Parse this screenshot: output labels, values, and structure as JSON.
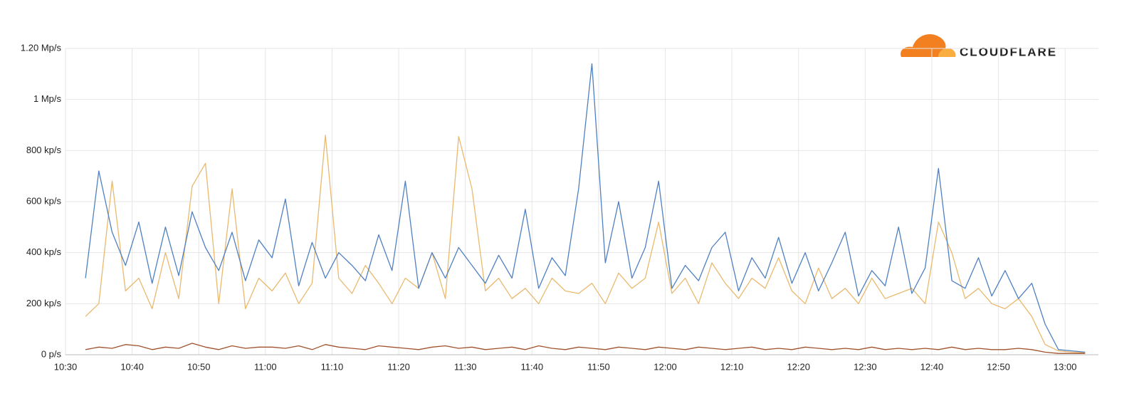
{
  "chart_data": {
    "type": "line",
    "logo": "CLOUDFLARE",
    "xlim": [
      "10:30",
      "13:05"
    ],
    "xticks": [
      "10:30",
      "10:40",
      "10:50",
      "11:00",
      "11:10",
      "11:20",
      "11:30",
      "11:40",
      "11:50",
      "12:00",
      "12:10",
      "12:20",
      "12:30",
      "12:40",
      "12:50",
      "13:00"
    ],
    "ylim": [
      0,
      1200000
    ],
    "yticks": [
      {
        "value": 0,
        "label": "0 p/s"
      },
      {
        "value": 200000,
        "label": "200 kp/s"
      },
      {
        "value": 400000,
        "label": "400 kp/s"
      },
      {
        "value": 600000,
        "label": "600 kp/s"
      },
      {
        "value": 800000,
        "label": "800 kp/s"
      },
      {
        "value": 1000000,
        "label": "1 Mp/s"
      },
      {
        "value": 1200000,
        "label": "1.20 Mp/s"
      }
    ],
    "grid": true,
    "x": [
      "10:33",
      "10:35",
      "10:37",
      "10:39",
      "10:41",
      "10:43",
      "10:45",
      "10:47",
      "10:49",
      "10:51",
      "10:53",
      "10:55",
      "10:57",
      "10:59",
      "11:01",
      "11:03",
      "11:05",
      "11:07",
      "11:09",
      "11:11",
      "11:13",
      "11:15",
      "11:17",
      "11:19",
      "11:21",
      "11:23",
      "11:25",
      "11:27",
      "11:29",
      "11:31",
      "11:33",
      "11:35",
      "11:37",
      "11:39",
      "11:41",
      "11:43",
      "11:45",
      "11:47",
      "11:49",
      "11:51",
      "11:53",
      "11:55",
      "11:57",
      "11:59",
      "12:01",
      "12:03",
      "12:05",
      "12:07",
      "12:09",
      "12:11",
      "12:13",
      "12:15",
      "12:17",
      "12:19",
      "12:21",
      "12:23",
      "12:25",
      "12:27",
      "12:29",
      "12:31",
      "12:33",
      "12:35",
      "12:37",
      "12:39",
      "12:41",
      "12:43",
      "12:45",
      "12:47",
      "12:49",
      "12:51",
      "12:53",
      "12:55",
      "12:57",
      "12:59",
      "13:01",
      "13:03"
    ],
    "series": [
      {
        "color": "#e9b96e",
        "values": [
          150000,
          200000,
          680000,
          250000,
          300000,
          180000,
          400000,
          220000,
          660000,
          750000,
          200000,
          650000,
          180000,
          300000,
          250000,
          320000,
          200000,
          280000,
          860000,
          300000,
          240000,
          350000,
          280000,
          200000,
          300000,
          260000,
          400000,
          220000,
          855000,
          650000,
          250000,
          300000,
          220000,
          260000,
          200000,
          300000,
          250000,
          240000,
          280000,
          200000,
          320000,
          260000,
          300000,
          520000,
          240000,
          300000,
          200000,
          360000,
          280000,
          220000,
          300000,
          260000,
          380000,
          250000,
          200000,
          340000,
          220000,
          260000,
          200000,
          300000,
          220000,
          240000,
          260000,
          200000,
          520000,
          400000,
          220000,
          260000,
          200000,
          180000,
          220000,
          150000,
          40000,
          15000,
          10000,
          8000
        ]
      },
      {
        "color": "#4f80c2",
        "values": [
          300000,
          720000,
          480000,
          350000,
          520000,
          280000,
          500000,
          310000,
          560000,
          420000,
          330000,
          480000,
          290000,
          450000,
          380000,
          610000,
          270000,
          440000,
          300000,
          400000,
          350000,
          290000,
          470000,
          330000,
          680000,
          260000,
          400000,
          300000,
          420000,
          350000,
          280000,
          390000,
          300000,
          570000,
          260000,
          380000,
          310000,
          650000,
          1140000,
          360000,
          600000,
          300000,
          420000,
          680000,
          260000,
          350000,
          290000,
          420000,
          480000,
          250000,
          380000,
          300000,
          460000,
          280000,
          400000,
          250000,
          360000,
          480000,
          230000,
          330000,
          270000,
          500000,
          240000,
          340000,
          730000,
          290000,
          260000,
          380000,
          230000,
          330000,
          220000,
          280000,
          120000,
          20000,
          15000,
          10000
        ]
      },
      {
        "color": "#a0522d",
        "values": [
          20000,
          30000,
          25000,
          40000,
          35000,
          20000,
          30000,
          25000,
          45000,
          30000,
          20000,
          35000,
          25000,
          30000,
          30000,
          25000,
          35000,
          20000,
          40000,
          30000,
          25000,
          20000,
          35000,
          30000,
          25000,
          20000,
          30000,
          35000,
          25000,
          30000,
          20000,
          25000,
          30000,
          20000,
          35000,
          25000,
          20000,
          30000,
          25000,
          20000,
          30000,
          25000,
          20000,
          30000,
          25000,
          20000,
          30000,
          25000,
          20000,
          25000,
          30000,
          20000,
          25000,
          20000,
          30000,
          25000,
          20000,
          25000,
          20000,
          30000,
          20000,
          25000,
          20000,
          25000,
          20000,
          30000,
          20000,
          25000,
          20000,
          20000,
          25000,
          20000,
          10000,
          5000,
          5000,
          5000
        ]
      }
    ]
  }
}
